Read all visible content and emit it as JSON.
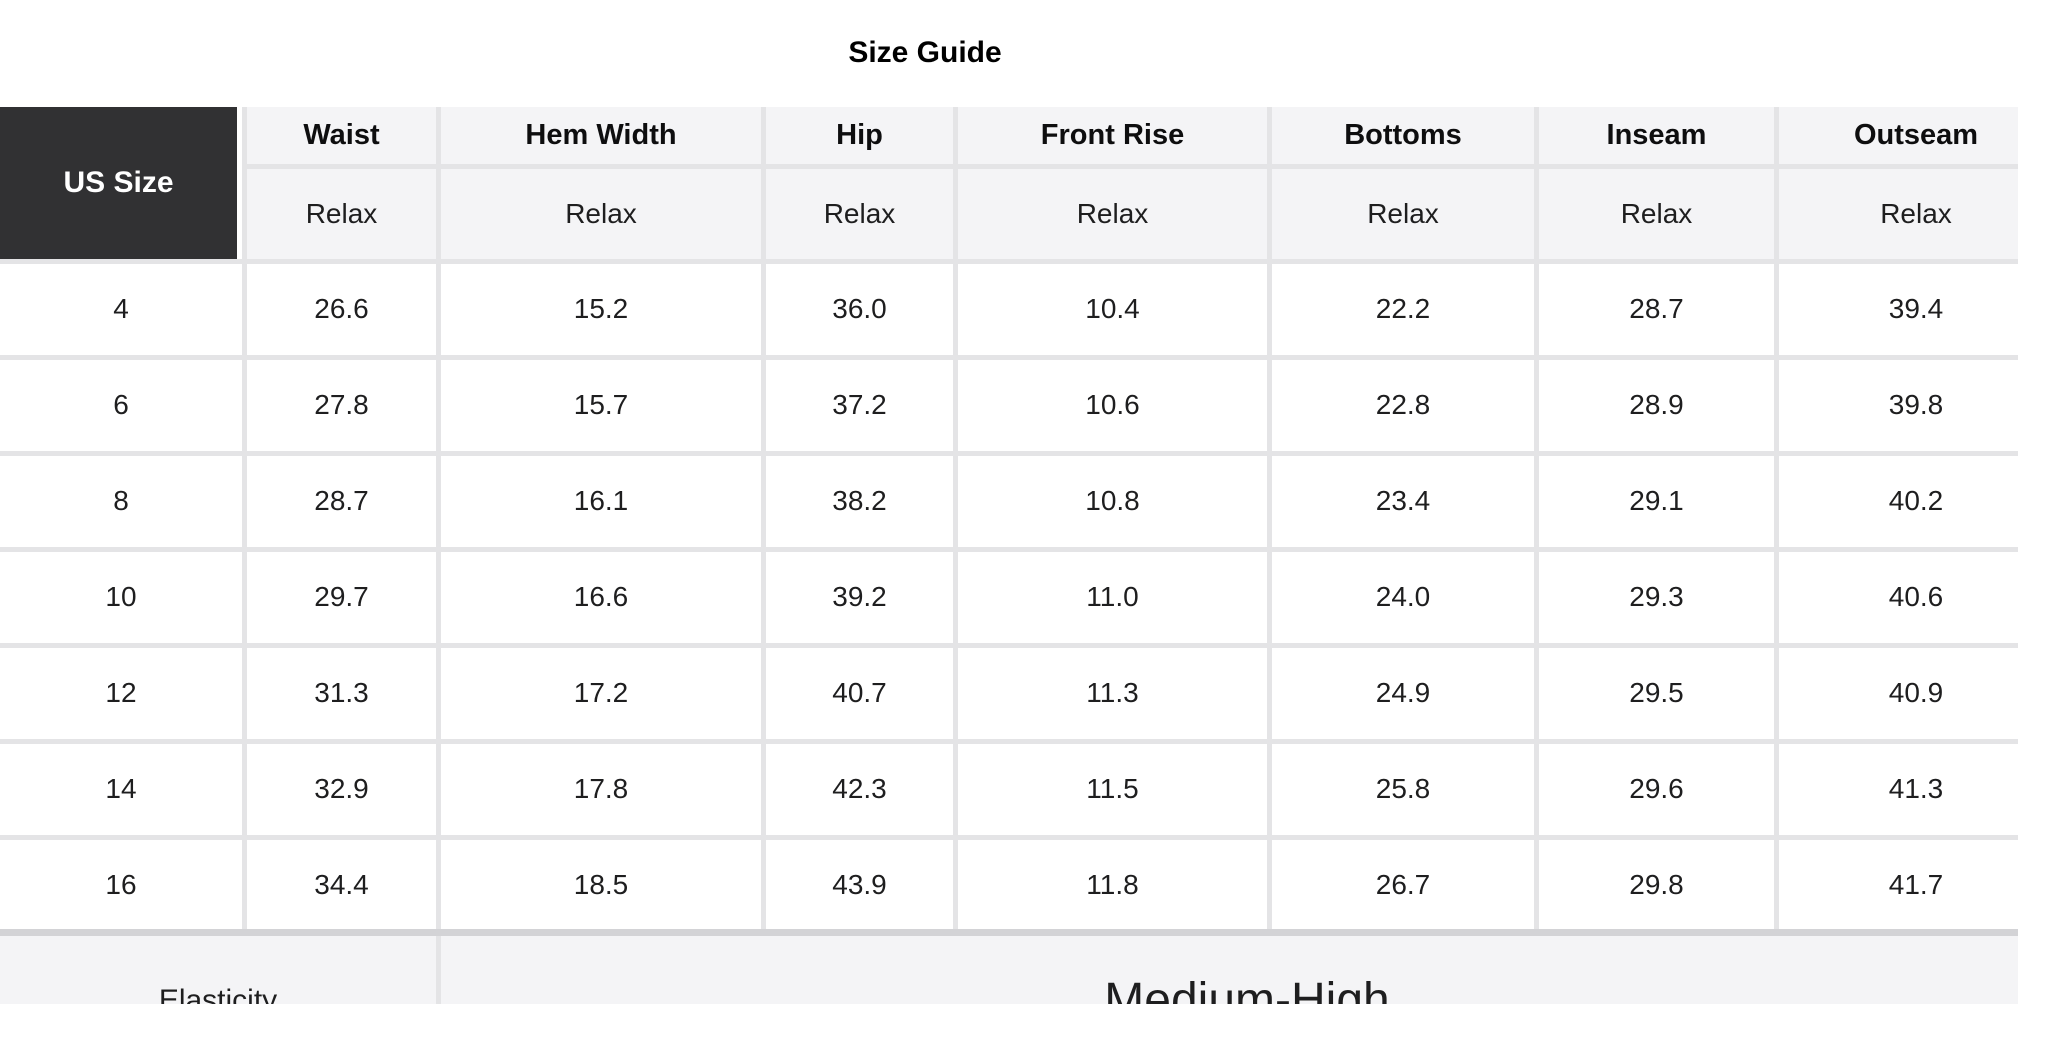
{
  "title": "Size Guide",
  "table": {
    "corner_header": "US Size",
    "columns": [
      "Waist",
      "Hem Width",
      "Hip",
      "Front Rise",
      "Bottoms",
      "Inseam",
      "Outseam"
    ],
    "fit_row": [
      "Relax",
      "Relax",
      "Relax",
      "Relax",
      "Relax",
      "Relax",
      "Relax"
    ],
    "rows": [
      {
        "size": "4",
        "values": [
          "26.6",
          "15.2",
          "36.0",
          "10.4",
          "22.2",
          "28.7",
          "39.4"
        ]
      },
      {
        "size": "6",
        "values": [
          "27.8",
          "15.7",
          "37.2",
          "10.6",
          "22.8",
          "28.9",
          "39.8"
        ]
      },
      {
        "size": "8",
        "values": [
          "28.7",
          "16.1",
          "38.2",
          "10.8",
          "23.4",
          "29.1",
          "40.2"
        ]
      },
      {
        "size": "10",
        "values": [
          "29.7",
          "16.6",
          "39.2",
          "11.0",
          "24.0",
          "29.3",
          "40.6"
        ]
      },
      {
        "size": "12",
        "values": [
          "31.3",
          "17.2",
          "40.7",
          "11.3",
          "24.9",
          "29.5",
          "40.9"
        ]
      },
      {
        "size": "14",
        "values": [
          "32.9",
          "17.8",
          "42.3",
          "11.5",
          "25.8",
          "29.6",
          "41.3"
        ]
      },
      {
        "size": "16",
        "values": [
          "34.4",
          "18.5",
          "43.9",
          "11.8",
          "26.7",
          "29.8",
          "41.7"
        ]
      }
    ],
    "footer": {
      "label": "Elasticity",
      "value": "Medium-High"
    }
  },
  "colors": {
    "page_bg": "#ffffff",
    "corner_bg": "#313133",
    "corner_text": "#ffffff",
    "header_bg": "#f4f4f6",
    "cell_bg": "#ffffff",
    "grid_line": "#e4e4e6",
    "footer_separator": "#d3d3d6",
    "text": "#1e1e1f",
    "title_text": "#000000"
  }
}
